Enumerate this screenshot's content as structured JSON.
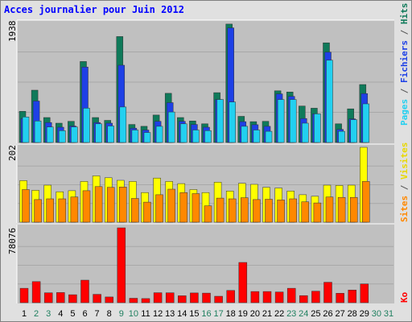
{
  "title": "Acces journalier pour Juin 2012",
  "colors": {
    "background": "#e0e0e0",
    "panel": "#c0c0c0",
    "title": "#0000ff",
    "hits": "#0f7a5a",
    "files": "#1e40e6",
    "pages": "#22d0f0",
    "visits": "#ffff00",
    "sites": "#ff8800",
    "ko": "#ff0000",
    "weekday_label": "#000000",
    "weekend_label": "#208060"
  },
  "max_labels": {
    "hits_panel": "1938",
    "visits_panel": "202",
    "ko_panel": "78076"
  },
  "right_legend": {
    "pages": "Pages",
    "files": "Fichiers",
    "hits": "Hits",
    "sites": "Sites",
    "visits": "Visites",
    "ko": "Ko",
    "separator": " / "
  },
  "chart_data": [
    {
      "type": "bar",
      "title": "Acces journalier pour Juin 2012",
      "categories": [
        "1",
        "2",
        "3",
        "4",
        "5",
        "6",
        "7",
        "8",
        "9",
        "10",
        "11",
        "12",
        "13",
        "14",
        "15",
        "16",
        "17",
        "18",
        "19",
        "20",
        "21",
        "22",
        "23",
        "24",
        "25",
        "26",
        "27",
        "28",
        "29",
        "30",
        "31"
      ],
      "weekend": [
        "2",
        "3",
        "9",
        "10",
        "16",
        "17",
        "23",
        "24",
        "30",
        "31"
      ],
      "ylim": [
        0,
        1938
      ],
      "series": [
        {
          "name": "Hits",
          "values": [
            500,
            840,
            400,
            310,
            340,
            1300,
            400,
            355,
            1700,
            290,
            260,
            440,
            790,
            400,
            345,
            300,
            800,
            1900,
            420,
            335,
            340,
            830,
            810,
            585,
            550,
            1600,
            300,
            540,
            930,
            0,
            0
          ]
        },
        {
          "name": "Fichiers",
          "values": [
            385,
            665,
            320,
            245,
            265,
            1210,
            320,
            310,
            1240,
            230,
            200,
            340,
            640,
            340,
            290,
            245,
            690,
            1840,
            335,
            285,
            260,
            780,
            740,
            385,
            460,
            1450,
            210,
            380,
            785,
            0,
            0
          ]
        },
        {
          "name": "Pages",
          "values": [
            410,
            345,
            250,
            190,
            250,
            550,
            300,
            265,
            570,
            200,
            160,
            260,
            490,
            300,
            200,
            190,
            690,
            650,
            260,
            200,
            180,
            690,
            690,
            310,
            460,
            1320,
            180,
            365,
            620,
            0,
            0
          ]
        }
      ]
    },
    {
      "type": "bar",
      "ylim": [
        0,
        202
      ],
      "series": [
        {
          "name": "Visites",
          "values": [
            112,
            86,
            100,
            82,
            85,
            110,
            125,
            120,
            113,
            110,
            80,
            119,
            110,
            104,
            88,
            80,
            108,
            84,
            105,
            102,
            94,
            92,
            84,
            74,
            70,
            100,
            99,
            100,
            202,
            0,
            0
          ]
        },
        {
          "name": "Sites",
          "values": [
            88,
            61,
            63,
            63,
            68,
            85,
            96,
            94,
            95,
            64,
            54,
            74,
            89,
            80,
            77,
            44,
            65,
            63,
            66,
            61,
            62,
            60,
            63,
            55,
            52,
            68,
            67,
            67,
            110,
            0,
            0
          ]
        }
      ]
    },
    {
      "type": "bar",
      "ylim": [
        0,
        78076
      ],
      "series": [
        {
          "name": "Ko",
          "values": [
            15000,
            22000,
            10300,
            10600,
            8300,
            23500,
            8700,
            6000,
            78076,
            4600,
            4300,
            10400,
            10300,
            7200,
            10200,
            10000,
            6700,
            12800,
            42000,
            11700,
            11700,
            11200,
            15000,
            7400,
            12000,
            21300,
            9800,
            13200,
            19600,
            0,
            0
          ]
        }
      ]
    }
  ]
}
